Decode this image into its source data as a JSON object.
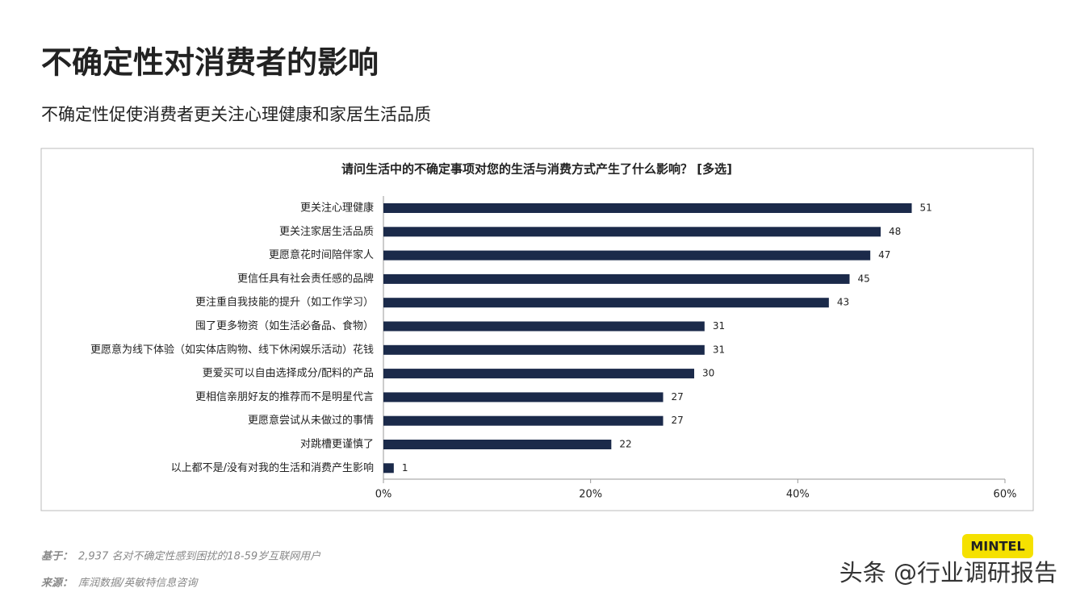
{
  "header": {
    "title": "不确定性对消费者的影响",
    "subtitle": "不确定性促使消费者更关注心理健康和家居生活品质"
  },
  "chart_data": {
    "type": "bar",
    "orientation": "horizontal",
    "title": "请问生活中的不确定事项对您的生活与消费方式产生了什么影响？ [多选]",
    "categories": [
      "更关注心理健康",
      "更关注家居生活品质",
      "更愿意花时间陪伴家人",
      "更信任具有社会责任感的品牌",
      "更注重自我技能的提升（如工作学习）",
      "囤了更多物资（如生活必备品、食物）",
      "更愿意为线下体验（如实体店购物、线下休闲娱乐活动）花钱",
      "更爱买可以自由选择成分/配料的产品",
      "更相信亲朋好友的推荐而不是明星代言",
      "更愿意尝试从未做过的事情",
      "对跳槽更谨慎了",
      "以上都不是/没有对我的生活和消费产生影响"
    ],
    "values": [
      51,
      48,
      47,
      45,
      43,
      31,
      31,
      30,
      27,
      27,
      22,
      1
    ],
    "color": "#1b2a4a",
    "xlim": [
      0,
      60
    ],
    "xticks": [
      {
        "value": 0,
        "label": "0%"
      },
      {
        "value": 20,
        "label": "20%"
      },
      {
        "value": 40,
        "label": "40%"
      },
      {
        "value": 60,
        "label": "60%"
      }
    ]
  },
  "footer": {
    "base_label": "基于：",
    "base_text": "2,937 名对不确定性感到困扰的18-59岁互联网用户",
    "source_label": "来源：",
    "source_text": "库润数据/英敏特信息咨询"
  },
  "logo": "MINTEL",
  "watermark": "头条 @行业调研报告"
}
